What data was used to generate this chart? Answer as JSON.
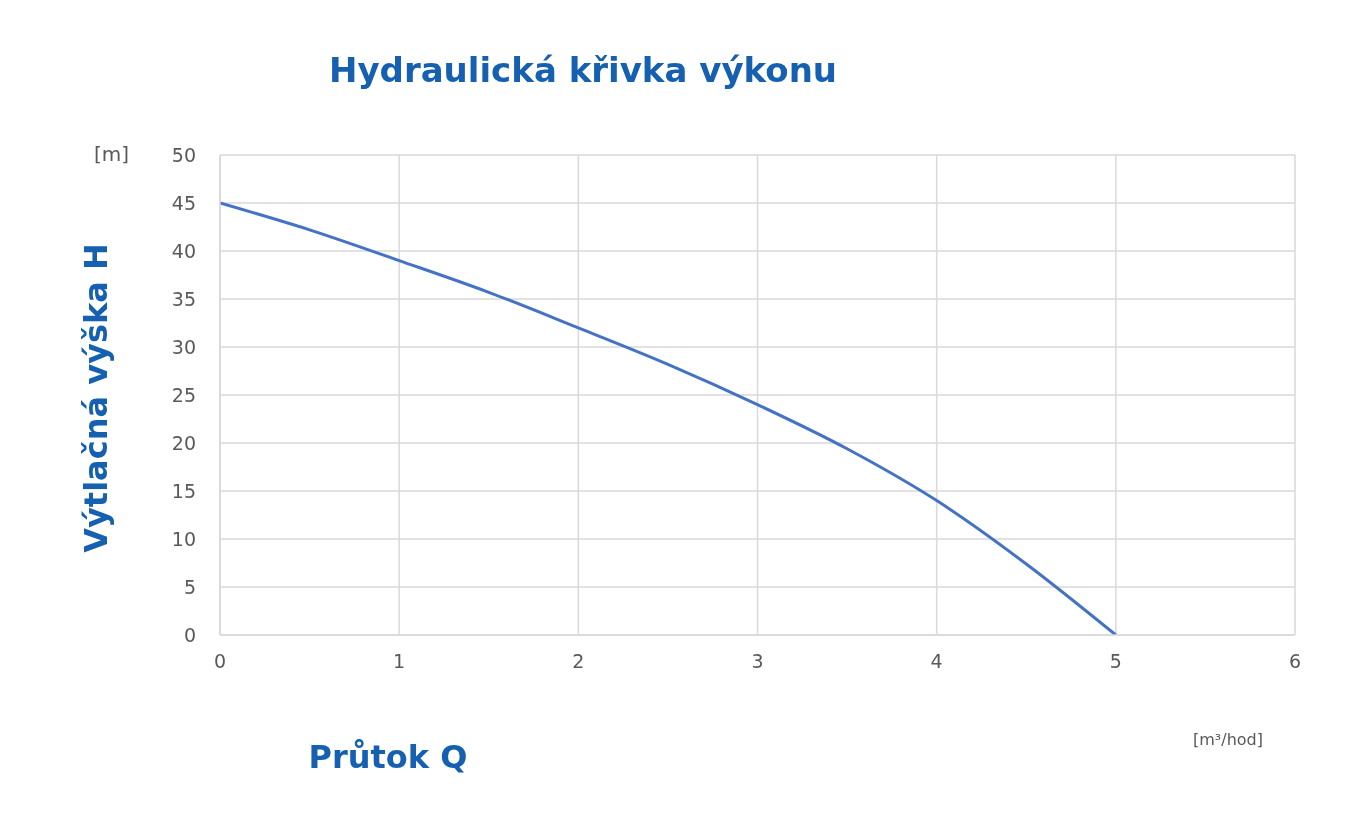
{
  "chart_data": {
    "type": "line",
    "title": "Hydraulická křivka výkonu",
    "xlabel": "Průtok Q",
    "ylabel": "Výtlačná výška H",
    "annotations": [
      "[m]",
      "[m³/hod]"
    ],
    "x": [
      0,
      0.5,
      1,
      1.5,
      2,
      2.5,
      3,
      3.5,
      4,
      4.5,
      5
    ],
    "series": [
      {
        "color": "#4472c4",
        "values": [
          45,
          42.2,
          39,
          35.7,
          32,
          28.2,
          24,
          19.4,
          14,
          7.4,
          0
        ]
      }
    ],
    "xlim": [
      0,
      6
    ],
    "xticks": [
      0,
      1,
      2,
      3,
      4,
      5,
      6
    ],
    "ylim": [
      0,
      50
    ],
    "yticks": [
      0,
      5,
      10,
      15,
      20,
      25,
      30,
      35,
      40,
      45,
      50
    ],
    "grid": true,
    "legend": false,
    "marker": "none",
    "line_style": "solid"
  }
}
